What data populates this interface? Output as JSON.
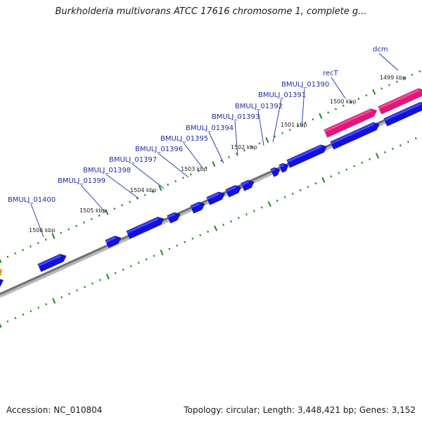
{
  "title": "Burkholderia multivorans ATCC 17616 chromosome 1, complete g...",
  "accession": "Accession: NC_010804",
  "summary": "Topology: circular; Length: 3,448,421 bp; Genes: 3,152",
  "colors": {
    "backbone": "#7a7a7a",
    "forward_gene": "#1010e0",
    "special_gene": "#e61478",
    "orange_gene": "#f0a020",
    "tick": "#1a8a1a",
    "label": "#1c2ea5"
  },
  "gene_labels": [
    {
      "text": "dcm"
    },
    {
      "text": "recT"
    },
    {
      "text": "BMULJ_01390"
    },
    {
      "text": "BMULJ_01391"
    },
    {
      "text": "BMULJ_01392"
    },
    {
      "text": "BMULJ_01393"
    },
    {
      "text": "BMULJ_01394"
    },
    {
      "text": "BMULJ_01395"
    },
    {
      "text": "BMULJ_01396"
    },
    {
      "text": "BMULJ_01397"
    },
    {
      "text": "BMULJ_01398"
    },
    {
      "text": "BMULJ_01399"
    },
    {
      "text": "BMULJ_01400"
    }
  ],
  "kbp_labels": [
    {
      "text": "1499 kbp"
    },
    {
      "text": "1500 kbp"
    },
    {
      "text": "1501 kbp"
    },
    {
      "text": "1502 kbp"
    },
    {
      "text": "1503 kbp"
    },
    {
      "text": "1504 kbp"
    },
    {
      "text": "1505 kbp"
    },
    {
      "text": "1506 kbp"
    }
  ]
}
